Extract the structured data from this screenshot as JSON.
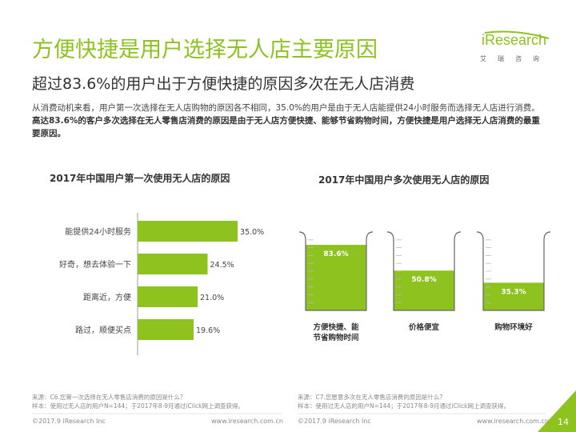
{
  "header": {
    "title": "方便快捷是用户选择无人店主要原因",
    "subtitle": "超过83.6%的用户出于方便快捷的原因多次在无人店消费"
  },
  "logo": {
    "name": "iResearch",
    "sub": "艾瑞咨询"
  },
  "description": {
    "normal": "从消费动机来看，用户第一次选择在无人店购物的原因各不相同，35.0%的用户是由于无人店能提供24小时服务而选择无人店进行消费。",
    "bold": "高达83.6%的客户多次选择在无人零售店消费的原因是由于无人店方便快捷、能够节省购物时间，方便快捷是用户选择无人店消费的最重要原因。"
  },
  "colors": {
    "accent": "#8dc21f",
    "text": "#333333",
    "muted": "#888888"
  },
  "chart_data": [
    {
      "type": "bar",
      "orientation": "horizontal",
      "title": "2017年中国用户第一次使用无人店的原因",
      "categories": [
        "能提供24小时服务",
        "好奇，想去体验一下",
        "距离近，方便",
        "路过，顺便买点"
      ],
      "values": [
        35.0,
        24.5,
        21.0,
        19.6
      ],
      "labels": [
        "35.0%",
        "24.5%",
        "21.0%",
        "19.6%"
      ],
      "xlim": [
        0,
        35.0
      ],
      "unit": "%"
    },
    {
      "type": "bar",
      "style": "beaker",
      "title": "2017年中国用户多次使用无人店的原因",
      "categories": [
        "方便快捷、能节省购物时间",
        "价格便宜",
        "购物环境好"
      ],
      "category_lines": [
        [
          "方便快捷、能",
          "节省购物时间"
        ],
        [
          "价格便宜"
        ],
        [
          "购物环境好"
        ]
      ],
      "values": [
        83.6,
        50.8,
        35.3
      ],
      "labels": [
        "83.6%",
        "50.8%",
        "35.3%"
      ],
      "ylim": [
        0,
        100
      ],
      "unit": "%"
    }
  ],
  "sources": {
    "left": [
      "来源：C6.您第一次选择在无人零售店消费的原因是什么？",
      "样本：使用过无人店的用户N=144；于2017年8-9月通过iClick网上调查获得。"
    ],
    "right": [
      "来源：C7.您愿意多次在无人零售店消费的原因是什么？",
      "样本：使用过无人店的用户N=144；于2017年8-9月通过iClick网上调查获得。"
    ]
  },
  "footer": {
    "copyright_left": "©2017.9 iResearch Inc",
    "url_left": "www.iresearch.com.cn",
    "copyright_right": "©2017.9 iResearch Inc",
    "url_right": "www.iresearch.com.cn",
    "page": "14"
  }
}
